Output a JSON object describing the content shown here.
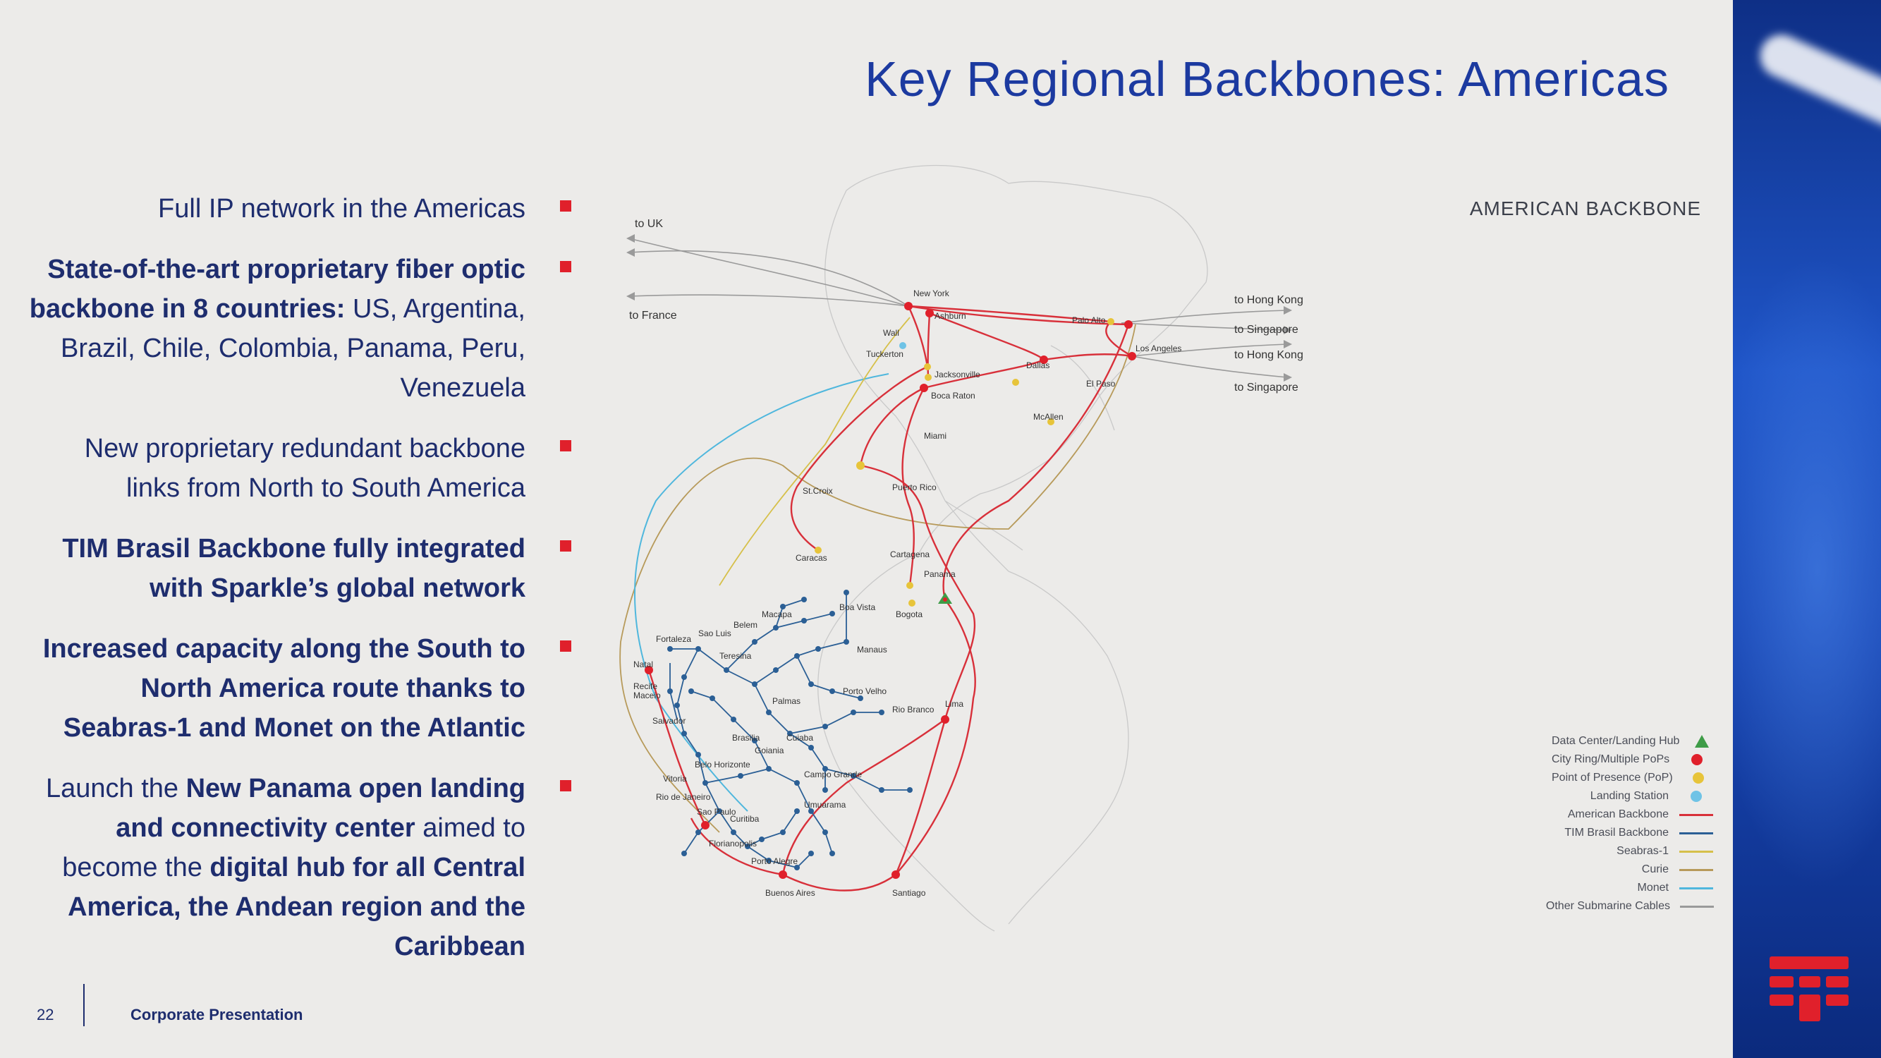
{
  "title": "Key Regional Backbones: Americas",
  "section_label": "AMERICAN BACKBONE",
  "bullets": [
    {
      "parts": [
        {
          "text": "Full IP network in the Americas",
          "bold": false
        }
      ]
    },
    {
      "parts": [
        {
          "text": "State-of-the-art proprietary fiber optic backbone in 8 countries: ",
          "bold": true
        },
        {
          "text": "US, Argentina, Brazil, Chile, Colombia, Panama, Peru, Venezuela",
          "bold": false
        }
      ]
    },
    {
      "parts": [
        {
          "text": "New proprietary redundant backbone links from North to South America",
          "bold": false
        }
      ]
    },
    {
      "parts": [
        {
          "text": "TIM Brasil Backbone fully integrated with Sparkle’s global network",
          "bold": true
        }
      ]
    },
    {
      "parts": [
        {
          "text": "Increased capacity along the South to North America route thanks to Seabras-1 and Monet on the Atlantic",
          "bold": true
        }
      ]
    },
    {
      "parts": [
        {
          "text": "Launch the ",
          "bold": false
        },
        {
          "text": "New Panama open landing and connectivity center",
          "bold": true
        },
        {
          "text": " aimed to become the ",
          "bold": false
        },
        {
          "text": "digital hub for all Central America, the Andean region and the Caribbean",
          "bold": true
        }
      ]
    }
  ],
  "map": {
    "external_labels": {
      "to_uk": "to UK",
      "to_france": "to France",
      "to_hong_kong_1": "to Hong Kong",
      "to_singapore_1": "to Singapore",
      "to_hong_kong_2": "to Hong Kong",
      "to_singapore_2": "to Singapore"
    },
    "cities": {
      "new_york": "New York",
      "ashburn": "Ashburn",
      "wall": "Wall",
      "tuckerton": "Tuckerton",
      "palo_alto": "Palo Alto",
      "los_angeles": "Los Angeles",
      "dallas": "Dallas",
      "el_paso": "El Paso",
      "jacksonville": "Jacksonville",
      "boca_raton": "Boca Raton",
      "mcallen": "McAllen",
      "miami": "Miami",
      "st_croix": "St.Croix",
      "puerto_rico": "Puerto Rico",
      "caracas": "Caracas",
      "cartagena": "Cartagena",
      "panama": "Panama",
      "bogota": "Bogota",
      "boa_vista": "Boa Vista",
      "manaus": "Manaus",
      "fortaleza": "Fortaleza",
      "sao_luis": "Sao Luis",
      "belem": "Belem",
      "macapa": "Macapa",
      "natal": "Natal",
      "recife": "Recife",
      "maceio": "Maceio",
      "salvador": "Salvador",
      "teresina": "Teresina",
      "palmas": "Palmas",
      "porto_velho": "Porto Velho",
      "rio_branco": "Rio Branco",
      "cuiaba": "Cuiaba",
      "brasilia": "Brasilia",
      "goiania": "Goiania",
      "campo_grande": "Campo Grande",
      "belo_horizonte": "Belo Horizonte",
      "vitoria": "Vitoria",
      "rio_de_janeiro": "Rio de Janeiro",
      "sao_paulo": "Sao Paulo",
      "curitiba": "Curitiba",
      "florianopolis": "Florianopolis",
      "porto_alegre": "Porto Alegre",
      "umuarama": "Umuarama",
      "lima": "Lima",
      "santiago": "Santiago",
      "buenos_aires": "Buenos Aires"
    }
  },
  "legend": [
    {
      "label": "Data Center/Landing Hub",
      "kind": "triangle",
      "color": "#3e9c47"
    },
    {
      "label": "City Ring/Multiple PoPs",
      "kind": "dot",
      "color": "#e0202b"
    },
    {
      "label": "Point of Presence (PoP)",
      "kind": "dot",
      "color": "#e7c43a"
    },
    {
      "label": "Landing Station",
      "kind": "dot",
      "color": "#6fc3e6"
    },
    {
      "label": "American Backbone",
      "kind": "line",
      "color": "#d8303a"
    },
    {
      "label": "TIM Brasil Backbone",
      "kind": "line",
      "color": "#2b5f95"
    },
    {
      "label": "Seabras-1",
      "kind": "line",
      "color": "#d6c04a"
    },
    {
      "label": "Curie",
      "kind": "line",
      "color": "#b79a5a"
    },
    {
      "label": "Monet",
      "kind": "line",
      "color": "#4fb7dd"
    },
    {
      "label": "Other Submarine Cables",
      "kind": "line",
      "color": "#9a9a9a"
    }
  ],
  "footer": {
    "page_number": "22",
    "text": "Corporate Presentation"
  }
}
